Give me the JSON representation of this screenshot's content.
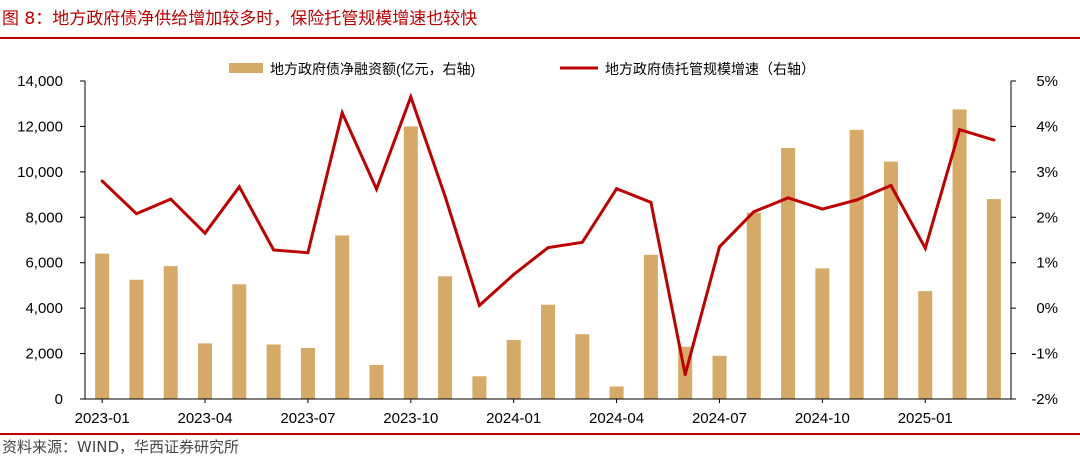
{
  "header": {
    "title": "图 8：地方政府债净供给增加较多时，保险托管规模增速也较快"
  },
  "footer": {
    "source": "资料来源：WIND，华西证券研究所"
  },
  "colors": {
    "bar": "#d4aa66",
    "line": "#c00000",
    "axis": "#000000",
    "text": "#000000"
  },
  "chart_data": {
    "type": "bar",
    "title": "",
    "xlabel": "",
    "ylabel": "",
    "ylim": [
      0,
      14000
    ],
    "y2lim": [
      -2,
      5
    ],
    "y_ticks": [
      "0",
      "2,000",
      "4,000",
      "6,000",
      "8,000",
      "10,000",
      "12,000",
      "14,000"
    ],
    "y2_ticks": [
      "-2%",
      "-1%",
      "0%",
      "1%",
      "2%",
      "3%",
      "4%",
      "5%"
    ],
    "x_tick_labels": [
      "2023-01",
      "2023-04",
      "2023-07",
      "2023-10",
      "2024-01",
      "2024-04",
      "2024-07",
      "2024-10",
      "2025-01"
    ],
    "legend_position": "top",
    "categories": [
      "2023-01",
      "2023-02",
      "2023-03",
      "2023-04",
      "2023-05",
      "2023-06",
      "2023-07",
      "2023-08",
      "2023-09",
      "2023-10",
      "2023-11",
      "2023-12",
      "2024-01",
      "2024-02",
      "2024-03",
      "2024-04",
      "2024-05",
      "2024-06",
      "2024-07",
      "2024-08",
      "2024-09",
      "2024-10",
      "2024-11",
      "2024-12",
      "2025-01",
      "2025-02",
      "2025-03"
    ],
    "series": [
      {
        "name": "地方政府债净融资额(亿元，右轴)",
        "type": "bar",
        "axis": "left",
        "values": [
          6400,
          5250,
          5850,
          2450,
          5050,
          2400,
          2250,
          7200,
          1500,
          12000,
          5400,
          1000,
          2600,
          4150,
          2850,
          550,
          6350,
          2300,
          1900,
          8200,
          11050,
          5750,
          11850,
          10450,
          4750,
          12750,
          8800
        ]
      },
      {
        "name": "地方政府债托管规模增速（右轴）",
        "type": "line",
        "axis": "right",
        "values": [
          2.8,
          2.08,
          2.4,
          1.65,
          2.67,
          1.28,
          1.22,
          4.3,
          2.62,
          4.65,
          2.46,
          0.06,
          0.74,
          1.33,
          1.45,
          2.63,
          2.33,
          -1.46,
          1.35,
          2.12,
          2.43,
          2.18,
          2.38,
          2.7,
          1.32,
          3.93,
          3.7
        ]
      }
    ]
  }
}
